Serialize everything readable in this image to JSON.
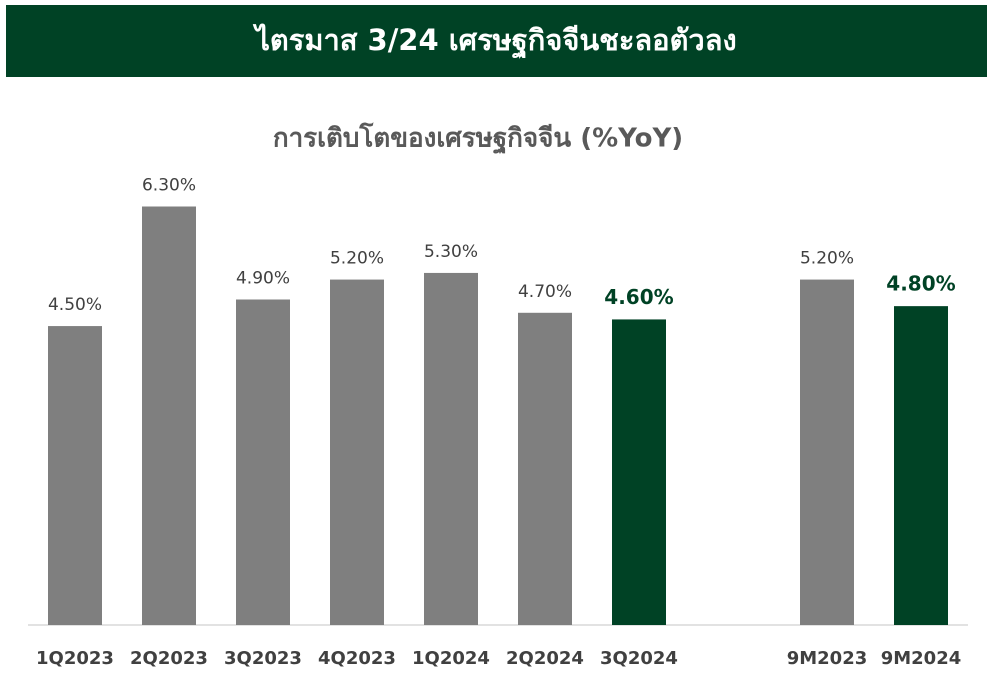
{
  "header": {
    "title": "ไตรมาส 3/24 เศรษฐกิจจีนชะลอตัวลง"
  },
  "chart_data": {
    "type": "bar",
    "title": "การเติบโตของเศรษฐกิจจีน (%YoY)",
    "categories": [
      "1Q2023",
      "2Q2023",
      "3Q2023",
      "4Q2023",
      "1Q2024",
      "2Q2024",
      "3Q2024",
      null,
      "9M2023",
      "9M2024"
    ],
    "values": [
      4.5,
      6.3,
      4.9,
      5.2,
      5.3,
      4.7,
      4.6,
      null,
      5.2,
      4.8
    ],
    "value_labels": [
      "4.50%",
      "6.30%",
      "4.90%",
      "5.20%",
      "5.30%",
      "4.70%",
      "4.60%",
      null,
      "5.20%",
      "4.80%"
    ],
    "colors": [
      "#7f7f7f",
      "#7f7f7f",
      "#7f7f7f",
      "#7f7f7f",
      "#7f7f7f",
      "#7f7f7f",
      "#004225",
      null,
      "#7f7f7f",
      "#004225"
    ],
    "ylim": [
      0,
      7
    ]
  }
}
